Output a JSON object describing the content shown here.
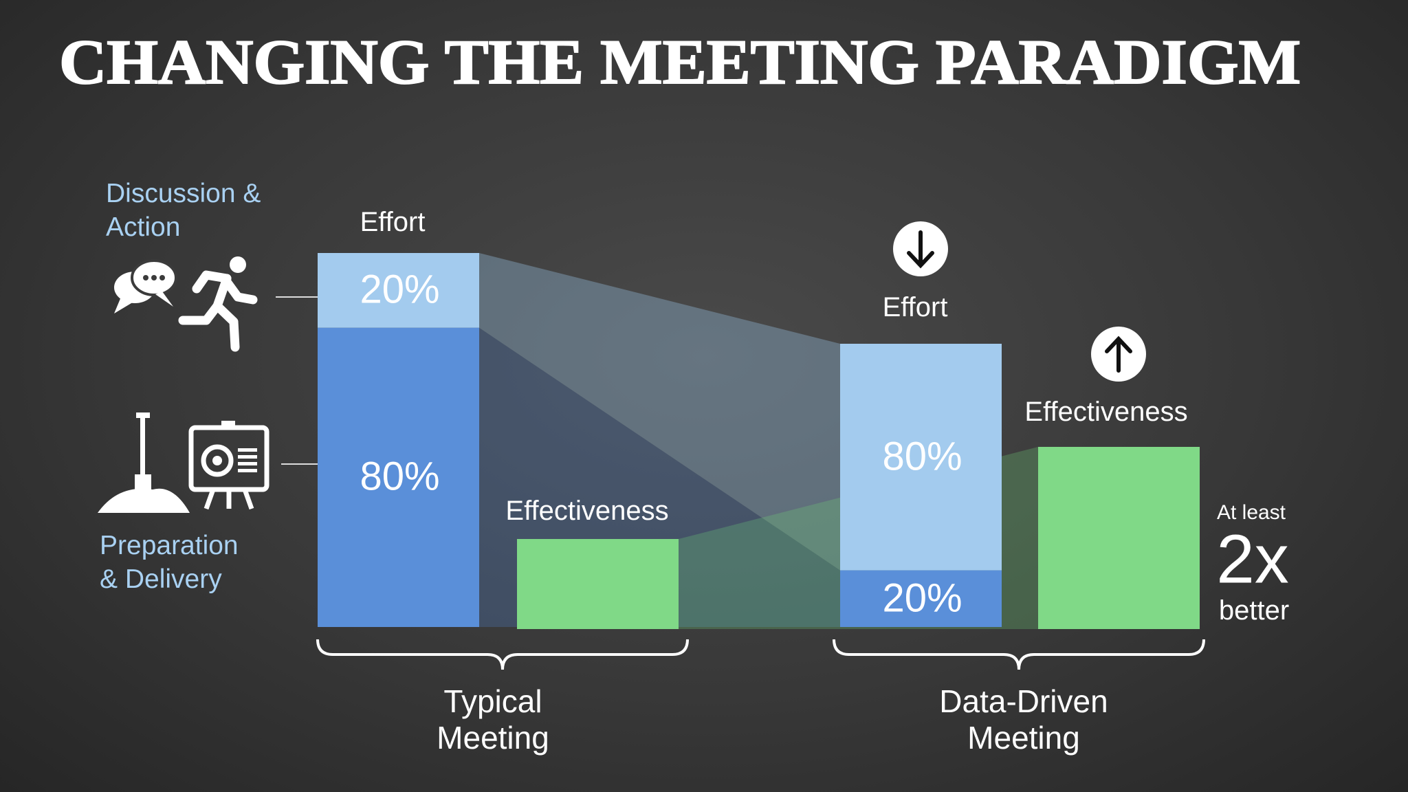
{
  "title": "CHANGING THE MEETING PARADIGM",
  "legend": {
    "top": "Discussion & Action",
    "bottom": "Preparation & Delivery"
  },
  "typical": {
    "effort_label": "Effort",
    "segments": [
      {
        "value": 20,
        "label": "20%"
      },
      {
        "value": 80,
        "label": "80%"
      }
    ],
    "effectiveness_label": "Effectiveness",
    "name": "Typical Meeting"
  },
  "data_driven": {
    "effort_label": "Effort",
    "segments": [
      {
        "value": 80,
        "label": "80%"
      },
      {
        "value": 20,
        "label": "20%"
      }
    ],
    "effectiveness_label": "Effectiveness",
    "name": "Data-Driven Meeting"
  },
  "note": {
    "prefix": "At least",
    "value": "2x",
    "suffix": "better"
  }
}
